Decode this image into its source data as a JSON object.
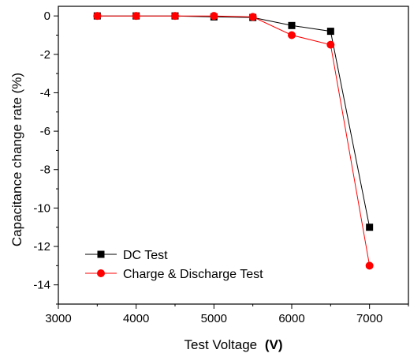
{
  "chart_data": {
    "type": "line",
    "title": "",
    "xlabel": "Test Voltage",
    "xlabel_unit": "(V)",
    "ylabel": "Capacitance change rate (%)",
    "xlim": [
      3000,
      7500
    ],
    "ylim": [
      -15,
      0.5
    ],
    "x_ticks": [
      3000,
      4000,
      5000,
      6000,
      7000
    ],
    "y_ticks": [
      0,
      -2,
      -4,
      -6,
      -8,
      -10,
      -12,
      -14
    ],
    "grid": false,
    "legend_position": "bottom-left",
    "x": [
      3500,
      4000,
      4500,
      5000,
      5500,
      6000,
      6500,
      7000
    ],
    "series": [
      {
        "name": "DC Test",
        "marker": "square",
        "color": "#000000",
        "values": [
          0,
          0,
          0,
          -0.05,
          -0.08,
          -0.5,
          -0.8,
          -11
        ]
      },
      {
        "name": "Charge & Discharge Test",
        "marker": "circle",
        "color": "#ff0000",
        "values": [
          0,
          0,
          0,
          0,
          -0.05,
          -1.0,
          -1.5,
          -13
        ]
      }
    ]
  }
}
